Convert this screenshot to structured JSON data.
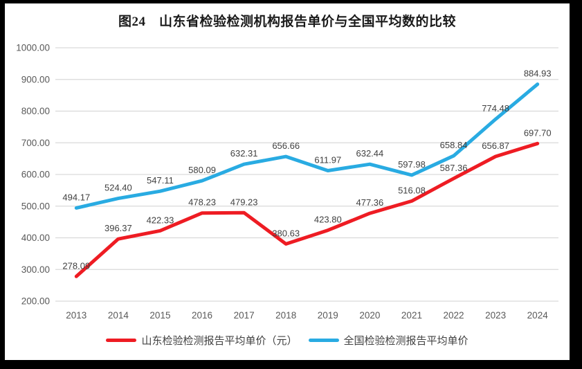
{
  "title": "图24　山东省检验检测机构报告单价与全国平均数的比较",
  "chart_data": {
    "type": "line",
    "categories": [
      "2013",
      "2014",
      "2015",
      "2016",
      "2017",
      "2018",
      "2019",
      "2020",
      "2021",
      "2022",
      "2023",
      "2024"
    ],
    "series": [
      {
        "name": "山东检验检测报告平均单价（元）",
        "color": "#ee1c23",
        "values": [
          278.09,
          396.37,
          422.33,
          478.23,
          479.23,
          380.63,
          423.8,
          477.36,
          516.08,
          587.36,
          656.87,
          697.7
        ]
      },
      {
        "name": "全国检验检测报告平均单价",
        "color": "#29abe2",
        "values": [
          494.17,
          524.4,
          547.11,
          580.09,
          632.31,
          656.66,
          611.97,
          632.44,
          597.98,
          658.84,
          774.48,
          884.93
        ]
      }
    ],
    "xlabel": "",
    "ylabel": "",
    "ylim": [
      200,
      1000
    ],
    "ytick_step": 100,
    "ytick_decimals": 2,
    "data_label_decimals": 2,
    "grid": true,
    "legend_position": "bottom",
    "data_labels": "above",
    "style": {
      "grid_color": "#d9d9d9",
      "tick_color": "#595959",
      "data_label_color": "#404040",
      "line_width": 5,
      "background": "#ffffff",
      "frame_color": "#000000"
    }
  }
}
